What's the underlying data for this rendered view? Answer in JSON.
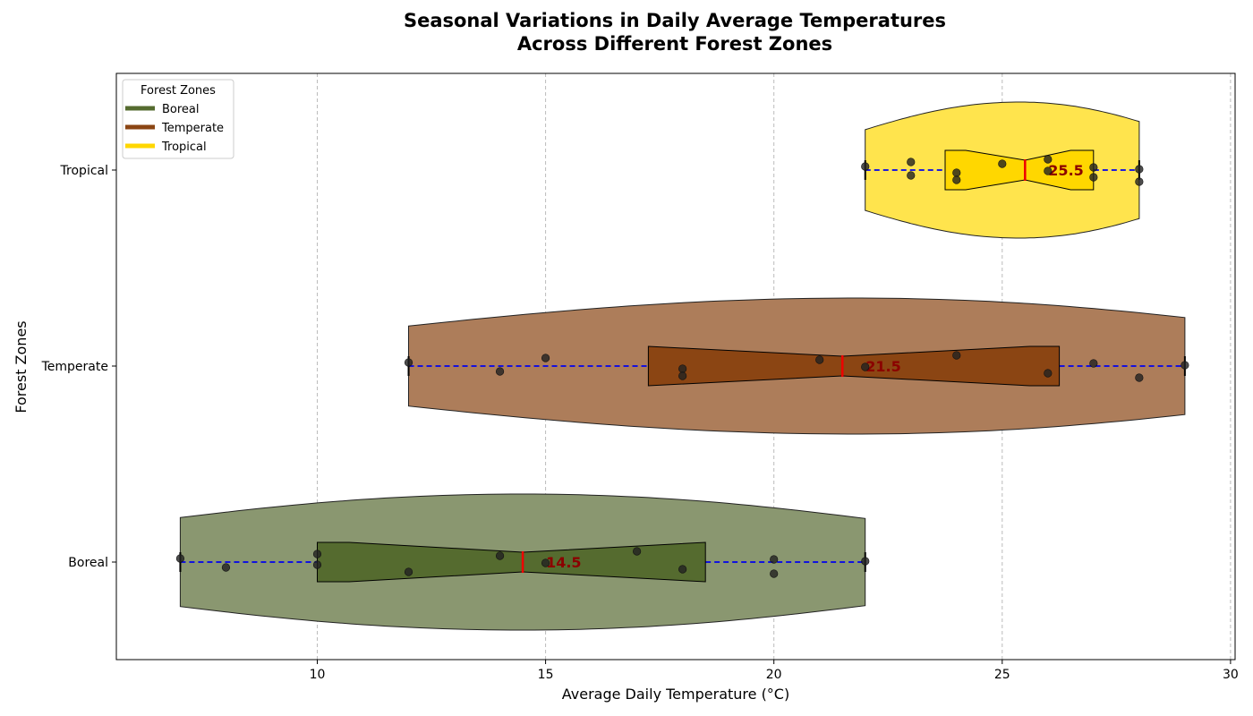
{
  "chart_data": {
    "type": "violin",
    "title_line1": "Seasonal Variations in Daily Average Temperatures",
    "title_line2": "Across Different Forest Zones",
    "xlabel": "Average Daily Temperature (°C)",
    "ylabel": "Forest Zones",
    "xlim": [
      5.6,
      30.1
    ],
    "xticks": [
      10,
      15,
      20,
      25,
      30
    ],
    "grid": "x-dashed",
    "legend": {
      "title": "Forest Zones",
      "placement": "top-left",
      "entries": [
        "Boreal",
        "Temperate",
        "Tropical"
      ]
    },
    "categories": [
      "Boreal",
      "Temperate",
      "Tropical"
    ],
    "series": [
      {
        "name": "Boreal",
        "color": "#556B2F",
        "violin_color": "#8A9770",
        "min": 7,
        "max": 22,
        "q1": 10,
        "median": 14.5,
        "q3": 18.5,
        "notch_low": 10.7,
        "notch_high": 18.5,
        "points": [
          7,
          8,
          10,
          10,
          12,
          14,
          15,
          17,
          18,
          20,
          20,
          22
        ],
        "median_label": "14.5"
      },
      {
        "name": "Temperate",
        "color": "#8B4513",
        "violin_color": "#AD7D5A",
        "min": 12,
        "max": 29,
        "q1": 17.25,
        "median": 21.5,
        "q3": 26.25,
        "notch_low": 17.25,
        "notch_high": 25.6,
        "points": [
          12,
          14,
          15,
          18,
          18,
          21,
          22,
          24,
          26,
          27,
          28,
          29
        ],
        "median_label": "21.5"
      },
      {
        "name": "Tropical",
        "color": "#FFD700",
        "violin_color": "#FFE44D",
        "min": 22,
        "max": 28,
        "q1": 23.75,
        "median": 25.5,
        "q3": 27,
        "notch_low": 24.2,
        "notch_high": 26.5,
        "points": [
          22,
          23,
          23,
          24,
          24,
          25,
          26,
          26,
          27,
          27,
          28,
          28
        ],
        "median_label": "25.5"
      }
    ]
  }
}
